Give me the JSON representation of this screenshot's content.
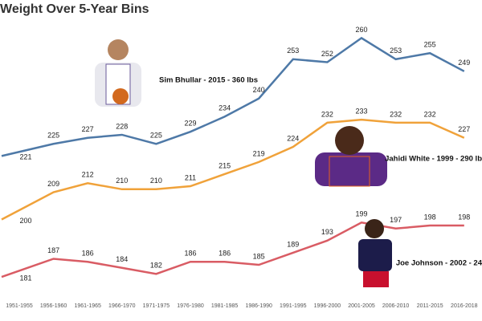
{
  "chart_data": {
    "type": "line",
    "title": "Weight Over 5-Year Bins",
    "categories": [
      "1951-1955",
      "1956-1960",
      "1961-1965",
      "1966-1970",
      "1971-1975",
      "1976-1980",
      "1981-1985",
      "1986-1990",
      "1991-1995",
      "1996-2000",
      "2001-2005",
      "2006-2010",
      "2011-2015",
      "2016-2018"
    ],
    "series": [
      {
        "color": "#4e79a7",
        "values": [
          221,
          225,
          227,
          228,
          225,
          229,
          234,
          240,
          253,
          252,
          260,
          253,
          255,
          249
        ]
      },
      {
        "color": "#f0a23a",
        "values": [
          200,
          209,
          212,
          210,
          210,
          211,
          215,
          219,
          224,
          232,
          233,
          232,
          232,
          227
        ]
      },
      {
        "color": "#d95c64",
        "values": [
          181,
          187,
          186,
          184,
          182,
          186,
          186,
          185,
          189,
          193,
          199,
          197,
          198,
          198
        ]
      }
    ],
    "ylim": [
      172,
      267
    ],
    "annotations": [
      {
        "text": "Sim Bhullar - 2015 - 360 lbs"
      },
      {
        "text": "Jahidi White - 1999 - 290 lb"
      },
      {
        "text": "Joe Johnson - 2002 - 24"
      }
    ]
  }
}
